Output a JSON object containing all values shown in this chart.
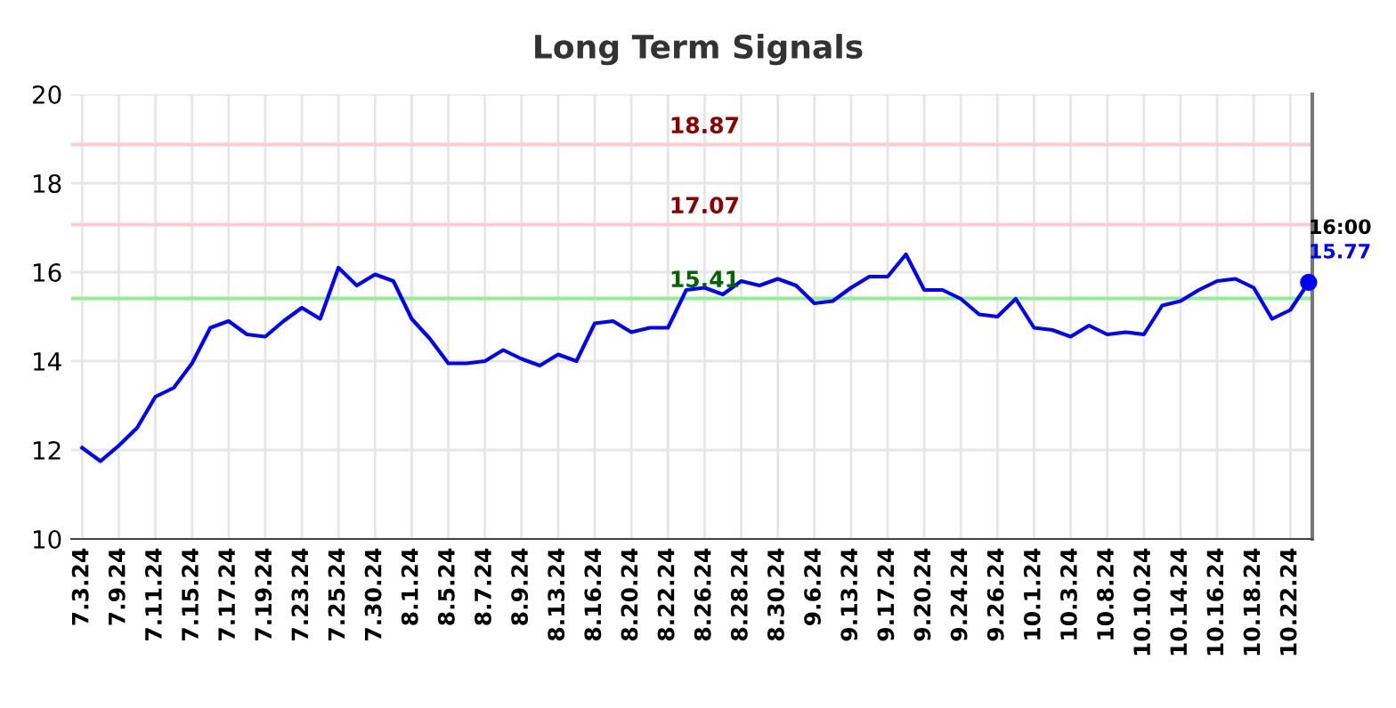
{
  "chart_data": {
    "type": "line",
    "title": "Long Term Signals",
    "categories": [
      "7.3.24",
      null,
      "7.9.24",
      null,
      "7.11.24",
      null,
      "7.15.24",
      null,
      "7.17.24",
      null,
      "7.19.24",
      null,
      "7.23.24",
      null,
      "7.25.24",
      null,
      "7.30.24",
      null,
      "8.1.24",
      null,
      "8.5.24",
      null,
      "8.7.24",
      null,
      "8.9.24",
      null,
      "8.13.24",
      null,
      "8.16.24",
      null,
      "8.20.24",
      null,
      "8.22.24",
      null,
      "8.26.24",
      null,
      "8.28.24",
      null,
      "8.30.24",
      null,
      "9.6.24",
      null,
      "9.13.24",
      null,
      "9.17.24",
      null,
      "9.20.24",
      null,
      "9.24.24",
      null,
      "9.26.24",
      null,
      "10.1.24",
      null,
      "10.3.24",
      null,
      "10.8.24",
      null,
      "10.10.24",
      null,
      "10.14.24",
      null,
      "10.16.24",
      null,
      "10.18.24",
      null,
      "10.22.24",
      null
    ],
    "series": [
      {
        "color": "#0000ff",
        "values": [
          12.05,
          11.75,
          12.1,
          12.5,
          13.2,
          13.4,
          13.95,
          14.75,
          14.9,
          14.6,
          14.55,
          14.9,
          15.2,
          14.95,
          16.1,
          15.7,
          15.95,
          15.8,
          14.95,
          14.5,
          13.95,
          13.95,
          14.0,
          14.25,
          14.05,
          13.9,
          14.15,
          14.0,
          14.85,
          14.9,
          14.65,
          14.75,
          14.75,
          15.6,
          15.65,
          15.5,
          15.8,
          15.7,
          15.85,
          15.7,
          15.3,
          15.35,
          15.65,
          15.9,
          15.9,
          16.4,
          15.6,
          15.6,
          15.4,
          15.05,
          15.0,
          15.4,
          14.75,
          14.7,
          14.55,
          14.8,
          14.6,
          14.65,
          14.6,
          15.25,
          15.35,
          15.6,
          15.8,
          15.85,
          15.65,
          14.95,
          15.15,
          15.77
        ]
      }
    ],
    "ylim": [
      10,
      20
    ],
    "yticks": [
      10,
      12,
      14,
      16,
      18,
      20
    ],
    "grid": true,
    "marker": "none",
    "line_style": "solid",
    "ref_lines": [
      {
        "axis": "y",
        "value": 18.87,
        "label": "18.87",
        "color": "#ffcccc"
      },
      {
        "axis": "y",
        "value": 17.07,
        "label": "17.07",
        "color": "#ffcccc"
      },
      {
        "axis": "y",
        "value": 15.41,
        "label": "15.41",
        "color": "#90ee90"
      }
    ],
    "annotations": [
      "16:00",
      "15.77"
    ]
  }
}
